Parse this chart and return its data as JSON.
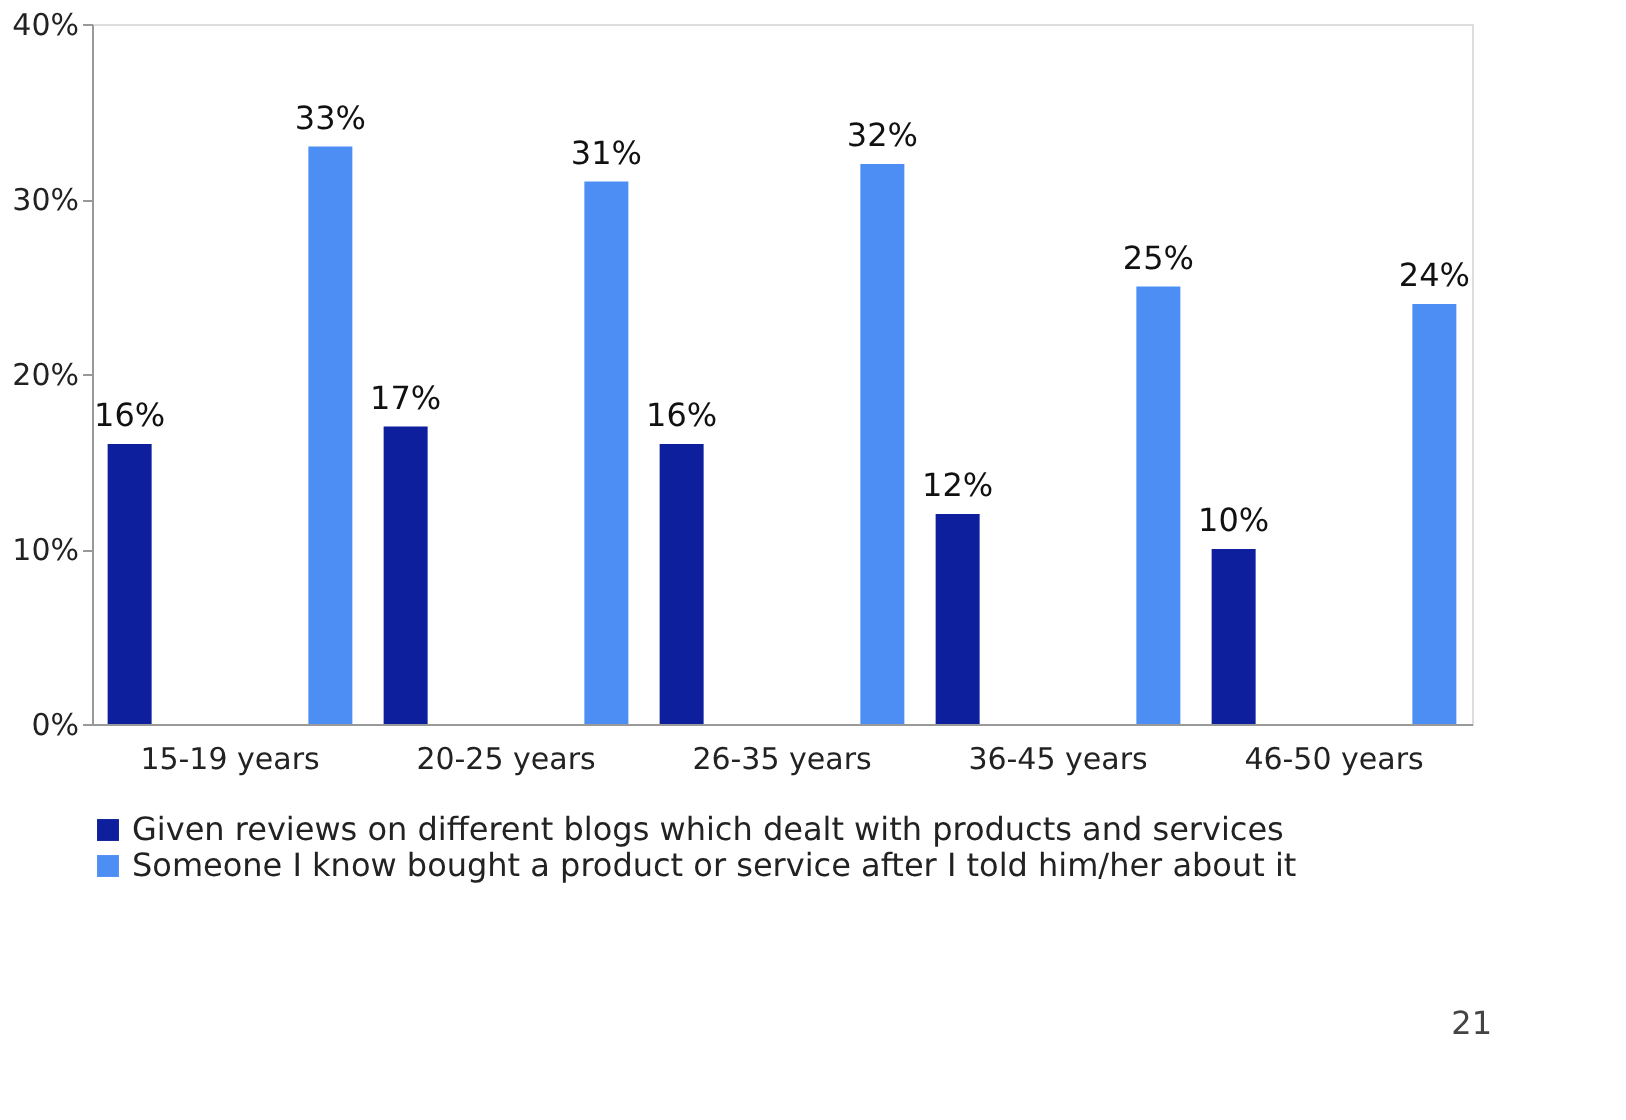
{
  "chart_data": {
    "type": "bar",
    "categories": [
      "15-19 years",
      "20-25 years",
      "26-35 years",
      "36-45 years",
      "46-50 years"
    ],
    "series": [
      {
        "name": "Given reviews on different blogs which dealt with products and services",
        "color": "#0d1f9c",
        "values": [
          16,
          17,
          16,
          12,
          10
        ],
        "value_labels": [
          "16%",
          "17%",
          "16%",
          "12%",
          "10%"
        ]
      },
      {
        "name": "Someone I know bought a product or service after I told him/her about it",
        "color": "#4d8ef5",
        "values": [
          33,
          31,
          32,
          25,
          24
        ],
        "value_labels": [
          "33%",
          "31%",
          "32%",
          "25%",
          "24%"
        ]
      }
    ],
    "ylim": [
      0,
      40
    ],
    "yticks": [
      {
        "value": 0,
        "label": "0%"
      },
      {
        "value": 10,
        "label": "10%"
      },
      {
        "value": 20,
        "label": "20%"
      },
      {
        "value": 30,
        "label": "30%"
      },
      {
        "value": 40,
        "label": "40%"
      }
    ],
    "grid": false,
    "legend": "bottom left",
    "annotations": [
      "21"
    ]
  }
}
